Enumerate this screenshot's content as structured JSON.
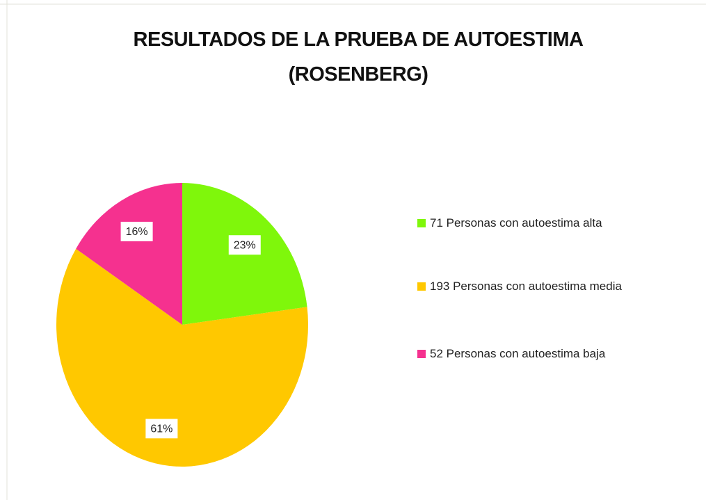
{
  "chart_data": {
    "type": "pie",
    "title": "RESULTADOS DE LA PRUEBA DE AUTOESTIMA (ROSENBERG)",
    "categories": [
      "71 Personas con autoestima alta",
      "193 Personas con autoestima media",
      "52 Personas con autoestima baja"
    ],
    "values": [
      23,
      61,
      16
    ],
    "value_labels": [
      "23%",
      "61%",
      "16%"
    ],
    "colors": [
      "#7ff70b",
      "#ffc800",
      "#f5318f"
    ],
    "legend": "right"
  }
}
